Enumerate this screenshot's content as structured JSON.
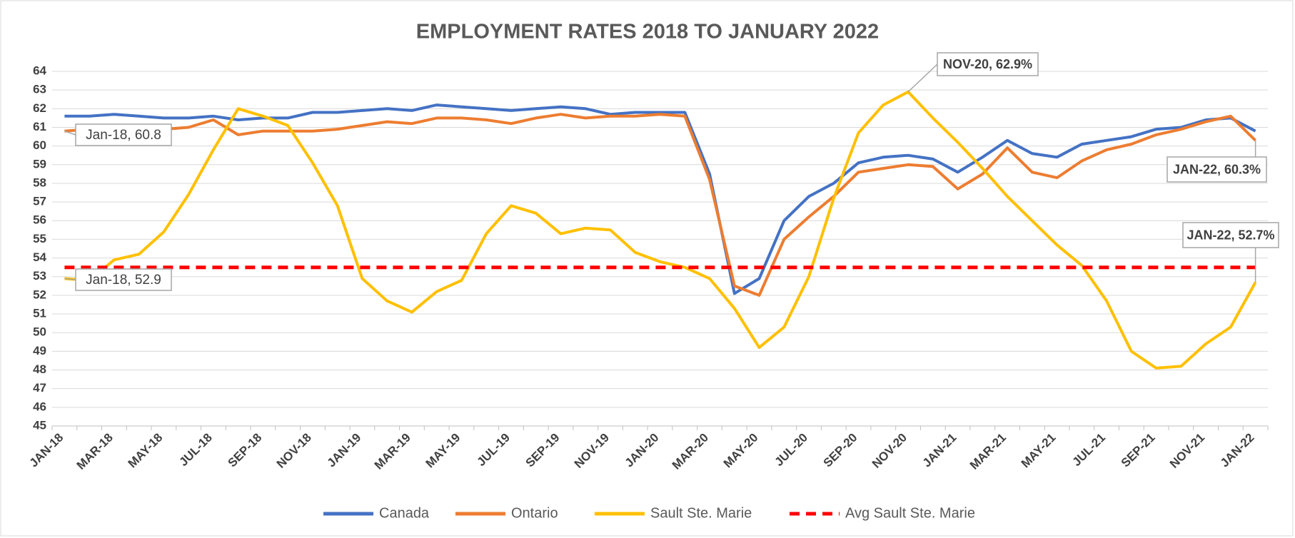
{
  "chart_data": {
    "type": "line",
    "title": "EMPLOYMENT RATES 2018 TO JANUARY 2022",
    "categories": [
      "JAN-18",
      null,
      "MAR-18",
      null,
      "MAY-18",
      null,
      "JUL-18",
      null,
      "SEP-18",
      null,
      "NOV-18",
      null,
      "JAN-19",
      null,
      "MAR-19",
      null,
      "MAY-19",
      null,
      "JUL-19",
      null,
      "SEP-19",
      null,
      "NOV-19",
      null,
      "JAN-20",
      null,
      "MAR-20",
      null,
      "MAY-20",
      null,
      "JUL-20",
      null,
      "SEP-20",
      null,
      "NOV-20",
      null,
      "JAN-21",
      null,
      "MAR-21",
      null,
      "MAY-21",
      null,
      "JUL-21",
      null,
      "SEP-21",
      null,
      "NOV-21",
      null,
      "JAN-22"
    ],
    "series": [
      {
        "name": "Canada",
        "color": "#4472c4",
        "values": [
          61.6,
          61.6,
          61.7,
          61.6,
          61.5,
          61.5,
          61.6,
          61.4,
          61.5,
          61.5,
          61.8,
          61.8,
          61.9,
          62.0,
          61.9,
          62.2,
          62.1,
          62.0,
          61.9,
          62.0,
          62.1,
          62.0,
          61.7,
          61.8,
          61.8,
          61.8,
          58.5,
          52.1,
          52.9,
          56.0,
          57.3,
          58.0,
          59.1,
          59.4,
          59.5,
          59.3,
          58.6,
          59.4,
          60.3,
          59.6,
          59.4,
          60.1,
          60.3,
          60.5,
          60.9,
          61.0,
          61.4,
          61.5,
          60.8
        ]
      },
      {
        "name": "Ontario",
        "color": "#ed7d31",
        "values": [
          60.8,
          60.9,
          60.8,
          60.8,
          60.9,
          61.0,
          61.4,
          60.6,
          60.8,
          60.8,
          60.8,
          60.9,
          61.1,
          61.3,
          61.2,
          61.5,
          61.5,
          61.4,
          61.2,
          61.5,
          61.7,
          61.5,
          61.6,
          61.6,
          61.7,
          61.6,
          58.2,
          52.5,
          52.0,
          55.0,
          56.2,
          57.3,
          58.6,
          58.8,
          59.0,
          58.9,
          57.7,
          58.5,
          59.9,
          58.6,
          58.3,
          59.2,
          59.8,
          60.1,
          60.6,
          60.9,
          61.3,
          61.6,
          60.3
        ]
      },
      {
        "name": "Sault Ste. Marie",
        "color": "#ffc000",
        "values": [
          52.9,
          52.8,
          53.9,
          54.2,
          55.4,
          57.4,
          59.8,
          62.0,
          61.6,
          61.1,
          59.1,
          56.8,
          52.9,
          51.7,
          51.1,
          52.2,
          52.8,
          55.3,
          56.8,
          56.4,
          55.3,
          55.6,
          55.5,
          54.3,
          53.8,
          53.5,
          52.9,
          51.3,
          49.2,
          50.3,
          53.0,
          57.2,
          60.7,
          62.2,
          62.9,
          61.5,
          60.2,
          58.8,
          57.3,
          56.0,
          54.7,
          53.6,
          51.7,
          49.0,
          48.1,
          48.2,
          49.4,
          50.3,
          52.7
        ]
      },
      {
        "name": "Avg Sault Ste. Marie",
        "color": "#ff0000",
        "line_style": "dashed",
        "values": [
          53.5,
          53.5,
          53.5,
          53.5,
          53.5,
          53.5,
          53.5,
          53.5,
          53.5,
          53.5,
          53.5,
          53.5,
          53.5,
          53.5,
          53.5,
          53.5,
          53.5,
          53.5,
          53.5,
          53.5,
          53.5,
          53.5,
          53.5,
          53.5,
          53.5,
          53.5,
          53.5,
          53.5,
          53.5,
          53.5,
          53.5,
          53.5,
          53.5,
          53.5,
          53.5,
          53.5,
          53.5,
          53.5,
          53.5,
          53.5,
          53.5,
          53.5,
          53.5,
          53.5,
          53.5,
          53.5,
          53.5,
          53.5,
          53.5
        ]
      }
    ],
    "annotations": [
      "Jan-18, 60.8",
      "Jan-18, 52.9",
      "NOV-20, 62.9%",
      "JAN-22, 60.3%",
      "JAN-22, 52.7%"
    ],
    "ylim": [
      45,
      64
    ],
    "yticks": [
      45,
      46,
      47,
      48,
      49,
      50,
      51,
      52,
      53,
      54,
      55,
      56,
      57,
      58,
      59,
      60,
      61,
      62,
      63,
      64
    ],
    "grid": true,
    "legend": "bottom"
  }
}
